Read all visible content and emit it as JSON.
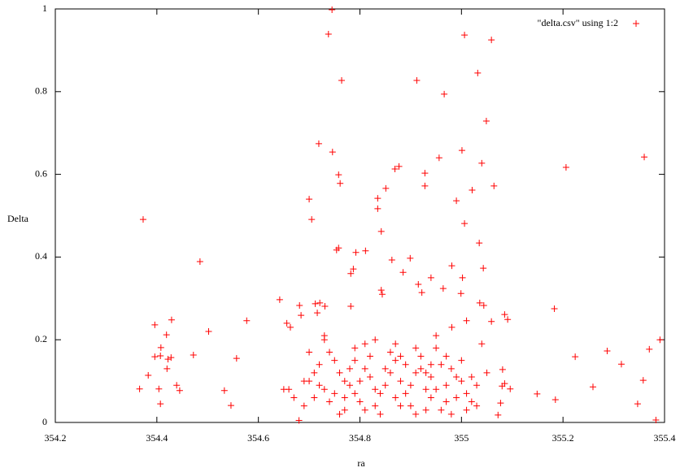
{
  "chart_data": {
    "type": "scatter",
    "xlabel": "ra",
    "ylabel": "Delta",
    "xlim": [
      354.2,
      355.4
    ],
    "ylim": [
      0,
      1
    ],
    "xticks": [
      354.2,
      354.4,
      354.6,
      354.8,
      355,
      355.2,
      355.4
    ],
    "yticks": [
      0,
      0.2,
      0.4,
      0.6,
      0.8,
      1
    ],
    "legend": "top-right",
    "grid": false,
    "series": [
      {
        "name": "\"delta.csv\" using 1:2",
        "color": "#ff0000",
        "x": [
          354.373,
          354.485,
          354.745,
          354.738,
          354.764,
          355.006,
          355.059,
          355.032,
          354.966,
          354.912,
          355.049,
          354.719,
          354.746,
          354.758,
          354.761,
          354.7,
          354.705,
          354.835,
          354.851,
          354.877,
          354.869,
          354.928,
          354.928,
          355.001,
          354.956,
          354.99,
          355.021,
          355.04,
          355.064,
          355.006,
          355.035,
          355.043,
          355.206,
          355.36,
          354.835,
          354.842,
          354.754,
          354.758,
          354.792,
          354.811,
          354.787,
          354.782,
          354.885,
          354.863,
          354.899,
          354.981,
          354.94,
          354.915,
          354.964,
          354.922,
          355.002,
          354.999,
          355.036,
          355.044,
          354.842,
          354.844,
          354.642,
          354.681,
          354.712,
          354.721,
          354.782,
          354.731,
          354.656,
          354.663,
          354.684,
          354.716,
          354.577,
          355.183,
          355.085,
          355.091,
          355.059,
          354.981,
          355.01,
          354.396,
          354.429,
          354.419,
          354.502,
          354.366,
          354.383,
          354.396,
          354.407,
          354.408,
          354.422,
          354.428,
          354.42,
          354.404,
          354.407,
          354.439,
          354.445,
          354.472,
          354.533,
          354.546,
          354.557,
          355.224,
          355.287,
          355.315,
          355.259,
          355.185,
          355.149,
          355.347,
          355.358,
          355.37,
          355.391,
          355.383,
          355.081,
          355.085,
          355.08,
          355.077,
          355.096,
          355.072,
          354.68,
          354.69,
          354.7,
          354.71,
          354.72,
          354.73,
          354.74,
          354.75,
          354.76,
          354.77,
          354.78,
          354.79,
          354.8,
          354.81,
          354.82,
          354.83,
          354.84,
          354.85,
          354.86,
          354.87,
          354.88,
          354.89,
          354.9,
          354.91,
          354.92,
          354.93,
          354.94,
          354.95,
          354.96,
          354.97,
          354.98,
          354.99,
          355.0,
          355.01,
          355.02,
          355.03,
          355.04,
          355.05,
          354.66,
          354.67,
          354.7,
          354.72,
          354.74,
          354.76,
          354.78,
          354.8,
          354.82,
          354.84,
          354.86,
          354.88,
          354.9,
          354.92,
          354.94,
          354.96,
          354.98,
          355.0,
          355.02,
          354.71,
          354.73,
          354.75,
          354.77,
          354.79,
          354.81,
          354.83,
          354.85,
          354.87,
          354.89,
          354.91,
          354.93,
          354.95,
          354.97,
          354.99,
          355.01,
          355.03,
          354.65,
          354.69,
          354.73,
          354.79,
          354.83,
          354.87,
          354.91,
          354.95,
          354.97,
          354.93,
          354.81,
          354.77,
          354.88,
          354.94
        ],
        "values": [
          0.491,
          0.389,
          0.998,
          0.939,
          0.827,
          0.937,
          0.925,
          0.845,
          0.794,
          0.827,
          0.729,
          0.674,
          0.654,
          0.599,
          0.578,
          0.54,
          0.491,
          0.542,
          0.566,
          0.619,
          0.613,
          0.603,
          0.572,
          0.658,
          0.64,
          0.536,
          0.562,
          0.627,
          0.572,
          0.481,
          0.434,
          0.373,
          0.617,
          0.642,
          0.517,
          0.462,
          0.417,
          0.422,
          0.411,
          0.415,
          0.371,
          0.36,
          0.363,
          0.393,
          0.397,
          0.379,
          0.35,
          0.334,
          0.324,
          0.314,
          0.35,
          0.312,
          0.289,
          0.283,
          0.32,
          0.31,
          0.297,
          0.283,
          0.287,
          0.289,
          0.281,
          0.281,
          0.24,
          0.23,
          0.259,
          0.265,
          0.246,
          0.275,
          0.261,
          0.249,
          0.244,
          0.23,
          0.246,
          0.236,
          0.248,
          0.212,
          0.22,
          0.081,
          0.114,
          0.159,
          0.161,
          0.181,
          0.153,
          0.157,
          0.13,
          0.081,
          0.045,
          0.09,
          0.077,
          0.163,
          0.077,
          0.041,
          0.155,
          0.159,
          0.173,
          0.141,
          0.086,
          0.055,
          0.069,
          0.045,
          0.102,
          0.177,
          0.2,
          0.006,
          0.128,
          0.094,
          0.088,
          0.047,
          0.081,
          0.018,
          0.005,
          0.04,
          0.1,
          0.06,
          0.14,
          0.2,
          0.17,
          0.07,
          0.12,
          0.03,
          0.09,
          0.15,
          0.05,
          0.19,
          0.11,
          0.08,
          0.02,
          0.13,
          0.17,
          0.06,
          0.1,
          0.14,
          0.04,
          0.12,
          0.16,
          0.08,
          0.11,
          0.18,
          0.03,
          0.09,
          0.13,
          0.06,
          0.15,
          0.07,
          0.11,
          0.04,
          0.19,
          0.12,
          0.08,
          0.06,
          0.17,
          0.09,
          0.05,
          0.02,
          0.13,
          0.1,
          0.16,
          0.07,
          0.12,
          0.04,
          0.09,
          0.13,
          0.06,
          0.14,
          0.02,
          0.1,
          0.05,
          0.12,
          0.08,
          0.15,
          0.1,
          0.07,
          0.13,
          0.04,
          0.09,
          0.15,
          0.07,
          0.02,
          0.12,
          0.08,
          0.16,
          0.11,
          0.03,
          0.09,
          0.08,
          0.1,
          0.21,
          0.18,
          0.2,
          0.19,
          0.18,
          0.21,
          0.05,
          0.03,
          0.03,
          0.06,
          0.16,
          0.14
        ]
      }
    ]
  }
}
